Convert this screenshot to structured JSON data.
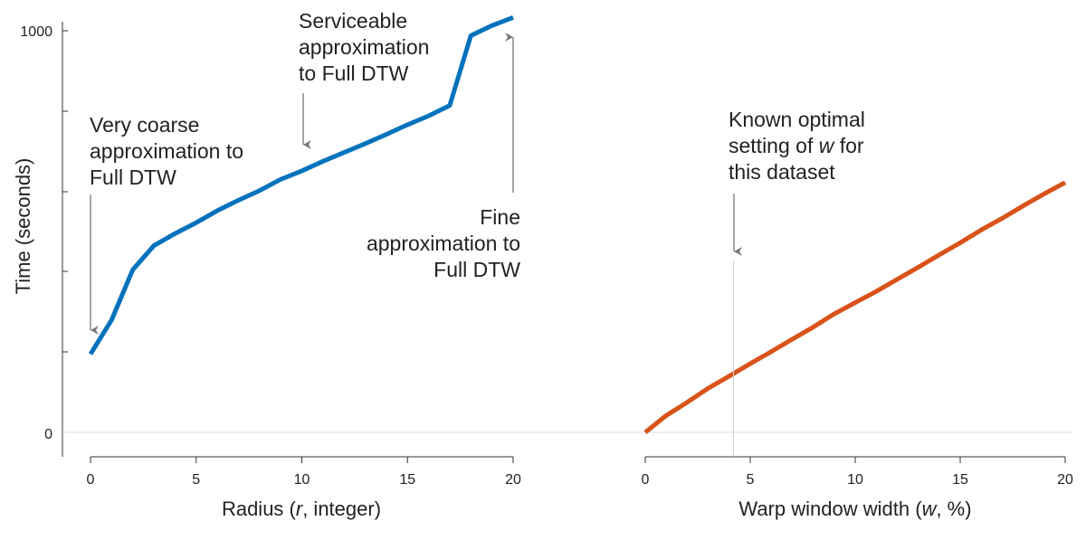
{
  "chart_data": [
    {
      "type": "line",
      "name": "left-panel",
      "ylabel": "Time (seconds)",
      "yticks": [
        0,
        1000
      ],
      "ylim": [
        0,
        1000
      ],
      "xlabel": {
        "pre": "Radius (",
        "var": "r",
        "post": ", integer)"
      },
      "xticks": [
        0,
        5,
        10,
        15,
        20
      ],
      "xlim": [
        0,
        20
      ],
      "color": "#0072bd",
      "series": [
        {
          "x": [
            0,
            1,
            2,
            3,
            4,
            5,
            6,
            7,
            8,
            9,
            10,
            11,
            12,
            13,
            14,
            15,
            16,
            17,
            18,
            19,
            20
          ],
          "values": [
            195,
            280,
            405,
            465,
            495,
            522,
            552,
            578,
            602,
            630,
            651,
            675,
            697,
            719,
            742,
            766,
            788,
            814,
            988,
            1013,
            1033
          ]
        }
      ],
      "annotations": [
        {
          "lines": [
            "Very coarse",
            "approximation to",
            "Full DTW"
          ],
          "arrow_to_x": 0
        },
        {
          "lines": [
            "Serviceable",
            "approximation",
            "to Full DTW"
          ],
          "arrow_to_x": 10
        },
        {
          "lines": [
            "Fine",
            "approximation to",
            "Full DTW"
          ],
          "arrow_to_x": 20
        }
      ]
    },
    {
      "type": "line",
      "name": "right-panel",
      "xlabel": {
        "pre": "Warp window width (",
        "var": "w",
        "post": ", %)"
      },
      "xticks": [
        0,
        5,
        10,
        15,
        20
      ],
      "xlim": [
        0,
        20
      ],
      "ylim": [
        0,
        1000
      ],
      "color": "#d95319",
      "series": [
        {
          "x": [
            0,
            1,
            2,
            3,
            4,
            5,
            6,
            7,
            8,
            9,
            10,
            11,
            12,
            13,
            14,
            15,
            16,
            17,
            18,
            19,
            20
          ],
          "values": [
            0,
            42,
            75,
            110,
            140,
            171,
            201,
            232,
            262,
            295,
            323,
            351,
            381,
            411,
            442,
            472,
            504,
            533,
            564,
            594,
            622
          ]
        }
      ],
      "annotation": {
        "lines": [
          [
            {
              "t": "Known optimal"
            }
          ],
          [
            {
              "t": "setting of "
            },
            {
              "t": "w",
              "italic": true
            },
            {
              "t": " for"
            }
          ],
          [
            {
              "t": "this dataset"
            }
          ]
        ],
        "x": 4.2
      }
    }
  ]
}
